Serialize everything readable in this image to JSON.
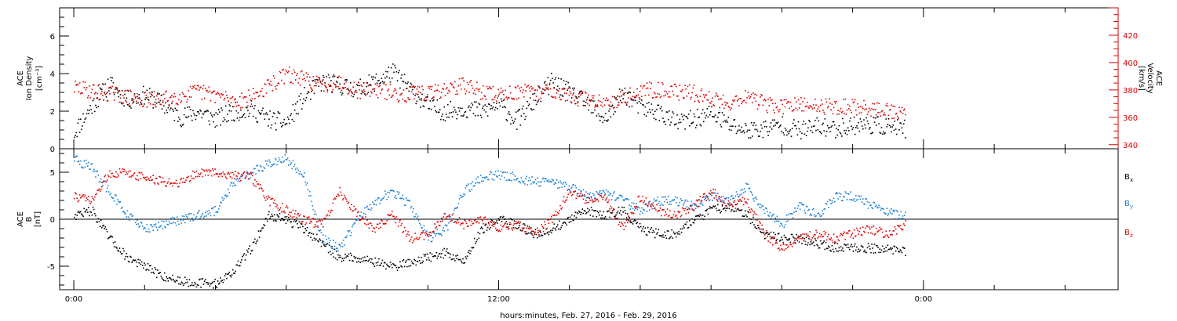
{
  "chart_data": [
    {
      "type": "scatter",
      "ylabel_line1": "ACE",
      "ylabel_line2": "Ion Density",
      "ylabel_unit": "[cm⁻³]",
      "y_ticks": [
        0,
        2,
        4,
        6
      ],
      "ylim": [
        0,
        7.5
      ],
      "y2label_line1": "ACE",
      "y2label_line2": "Velocity",
      "y2label_unit": "[km/s]",
      "y2_ticks": [
        340,
        360,
        380,
        400,
        420
      ],
      "y2lim": [
        337,
        440
      ],
      "series": [
        {
          "name": "",
          "axis": "left",
          "color": "#000000",
          "x": [
            0.0,
            0.5,
            1.0,
            1.5,
            2.0,
            2.5,
            3.0,
            3.5,
            4.0,
            4.5,
            5.0,
            5.5,
            6.0,
            6.5,
            7.0,
            7.5,
            8.0,
            8.5,
            9.0,
            9.5,
            10.0,
            10.5,
            11.0,
            11.5,
            12.0,
            12.5,
            13.0,
            13.5,
            14.0,
            14.5,
            15.0,
            15.5,
            16.0,
            16.5,
            17.0,
            17.5,
            18.0,
            18.5,
            19.0,
            19.5,
            20.0,
            20.5,
            21.0,
            21.5,
            22.0,
            22.5,
            23.0,
            23.5
          ],
          "values": [
            0.9,
            2.3,
            3.5,
            2.6,
            2.9,
            2.4,
            1.7,
            2.0,
            1.6,
            2.0,
            2.1,
            1.6,
            1.4,
            2.8,
            3.6,
            3.4,
            3.2,
            3.6,
            4.1,
            3.2,
            2.3,
            2.0,
            2.2,
            2.0,
            2.4,
            1.5,
            2.6,
            3.6,
            3.0,
            2.4,
            1.6,
            3.0,
            2.2,
            2.0,
            1.4,
            1.6,
            1.9,
            1.3,
            1.0,
            1.1,
            1.3,
            1.0,
            1.2,
            1.1,
            1.3,
            1.3,
            1.2,
            1.1
          ]
        },
        {
          "name": "",
          "axis": "right",
          "color": "#dd0000",
          "x": [
            0.0,
            0.5,
            1.0,
            1.5,
            2.0,
            2.5,
            3.0,
            3.5,
            4.0,
            4.5,
            5.0,
            5.5,
            6.0,
            6.5,
            7.0,
            7.5,
            8.0,
            8.5,
            9.0,
            9.5,
            10.0,
            10.5,
            11.0,
            11.5,
            12.0,
            12.5,
            13.0,
            13.5,
            14.0,
            14.5,
            15.0,
            15.5,
            16.0,
            16.5,
            17.0,
            17.5,
            18.0,
            18.5,
            19.0,
            19.5,
            20.0,
            20.5,
            21.0,
            21.5,
            22.0,
            22.5,
            23.0,
            23.5
          ],
          "values": [
            382,
            380,
            378,
            375,
            373,
            374,
            376,
            379,
            377,
            372,
            375,
            383,
            392,
            388,
            384,
            386,
            380,
            381,
            378,
            377,
            378,
            381,
            384,
            379,
            377,
            379,
            378,
            381,
            376,
            373,
            372,
            374,
            380,
            381,
            379,
            378,
            374,
            371,
            376,
            370,
            368,
            369,
            369,
            368,
            368,
            367,
            365,
            362
          ]
        }
      ]
    },
    {
      "type": "scatter",
      "ylabel_line1": "ACE",
      "ylabel_line2": "B",
      "ylabel_unit": "[nT]",
      "y_ticks": [
        -5,
        0,
        5
      ],
      "ylim": [
        -7.5,
        7.5
      ],
      "zero_line": true,
      "legend_position": "right",
      "series": [
        {
          "name": "Bx",
          "label_main": "B",
          "label_sub": "x",
          "color": "#000000",
          "x": [
            0.0,
            0.5,
            1.0,
            1.5,
            2.0,
            2.5,
            3.0,
            3.5,
            4.0,
            4.5,
            5.0,
            5.5,
            6.0,
            6.5,
            7.0,
            7.5,
            8.0,
            8.5,
            9.0,
            9.5,
            10.0,
            10.5,
            11.0,
            11.5,
            12.0,
            12.5,
            13.0,
            13.5,
            14.0,
            14.5,
            15.0,
            15.5,
            16.0,
            16.5,
            17.0,
            17.5,
            18.0,
            18.5,
            19.0,
            19.5,
            20.0,
            20.5,
            21.0,
            21.5,
            22.0,
            22.5,
            23.0,
            23.5
          ],
          "values": [
            0.5,
            1.0,
            -2.0,
            -4.0,
            -5.0,
            -6.0,
            -6.5,
            -6.7,
            -6.8,
            -5.5,
            -3.0,
            0.5,
            0.0,
            -1.0,
            -2.5,
            -4.0,
            -4.0,
            -4.5,
            -5.0,
            -4.5,
            -4.0,
            -3.5,
            -4.5,
            -1.0,
            0.0,
            -0.5,
            -1.5,
            -1.0,
            0.0,
            1.0,
            0.5,
            1.0,
            -1.0,
            -1.5,
            -1.5,
            0.0,
            1.0,
            1.5,
            0.5,
            -1.5,
            -2.0,
            -2.0,
            -2.5,
            -3.0,
            -3.0,
            -3.0,
            -3.2,
            -3.3
          ]
        },
        {
          "name": "By",
          "label_main": "B",
          "label_sub": "y",
          "color": "#1a7fd4",
          "x": [
            0.0,
            0.5,
            1.0,
            1.5,
            2.0,
            2.5,
            3.0,
            3.5,
            4.0,
            4.5,
            5.0,
            5.5,
            6.0,
            6.5,
            7.0,
            7.5,
            8.0,
            8.5,
            9.0,
            9.5,
            10.0,
            10.5,
            11.0,
            11.5,
            12.0,
            12.5,
            13.0,
            13.5,
            14.0,
            14.5,
            15.0,
            15.5,
            16.0,
            16.5,
            17.0,
            17.5,
            18.0,
            18.5,
            19.0,
            19.5,
            20.0,
            20.5,
            21.0,
            21.5,
            22.0,
            22.5,
            23.0,
            23.5
          ],
          "values": [
            6.5,
            5.5,
            3.0,
            0.5,
            -1.0,
            -0.5,
            0.0,
            0.5,
            1.0,
            4.0,
            5.0,
            6.0,
            6.5,
            4.5,
            -2.0,
            -3.0,
            0.0,
            2.0,
            3.0,
            1.5,
            -2.0,
            -1.0,
            3.0,
            4.5,
            4.8,
            4.5,
            4.0,
            4.0,
            3.5,
            2.5,
            3.0,
            2.0,
            1.0,
            2.0,
            2.0,
            1.5,
            2.5,
            2.0,
            3.5,
            1.0,
            -0.5,
            1.5,
            0.5,
            2.5,
            2.5,
            1.5,
            0.8,
            0.3
          ]
        },
        {
          "name": "Bz",
          "label_main": "B",
          "label_sub": "z",
          "color": "#dd0000",
          "x": [
            0.0,
            0.5,
            1.0,
            1.5,
            2.0,
            2.5,
            3.0,
            3.5,
            4.0,
            4.5,
            5.0,
            5.5,
            6.0,
            6.5,
            7.0,
            7.5,
            8.0,
            8.5,
            9.0,
            9.5,
            10.0,
            10.5,
            11.0,
            11.5,
            12.0,
            12.5,
            13.0,
            13.5,
            14.0,
            14.5,
            15.0,
            15.5,
            16.0,
            16.5,
            17.0,
            17.5,
            18.0,
            18.5,
            19.0,
            19.5,
            20.0,
            20.5,
            21.0,
            21.5,
            22.0,
            22.5,
            23.0,
            23.5
          ],
          "values": [
            2.5,
            2.0,
            5.0,
            5.0,
            4.5,
            4.0,
            4.0,
            5.0,
            5.0,
            4.8,
            4.5,
            2.0,
            1.0,
            0.0,
            -0.5,
            3.0,
            0.5,
            -1.0,
            0.5,
            -2.0,
            -1.5,
            0.5,
            -0.5,
            0.0,
            -1.0,
            -0.5,
            -1.5,
            0.0,
            3.0,
            2.0,
            2.5,
            -1.0,
            2.5,
            1.0,
            0.5,
            1.5,
            3.0,
            1.5,
            2.0,
            -1.5,
            -3.0,
            -2.0,
            -1.5,
            -2.0,
            -1.5,
            -1.0,
            -1.5,
            -0.5
          ]
        }
      ]
    }
  ],
  "x_axis": {
    "tick_labels": [
      {
        "x": 0,
        "label": "0:00"
      },
      {
        "x": 12,
        "label": "12:00"
      },
      {
        "x": 24,
        "label": "0:00"
      }
    ],
    "xlim": [
      -0.4,
      29.5
    ],
    "xlabel": "hours:minutes, Feb. 27, 2016 - Feb. 29, 2016"
  },
  "colors": {
    "left_axis": "#000000",
    "right_axis": "#dd0000",
    "bx": "#000000",
    "by": "#1a7fd4",
    "bz": "#dd0000"
  }
}
